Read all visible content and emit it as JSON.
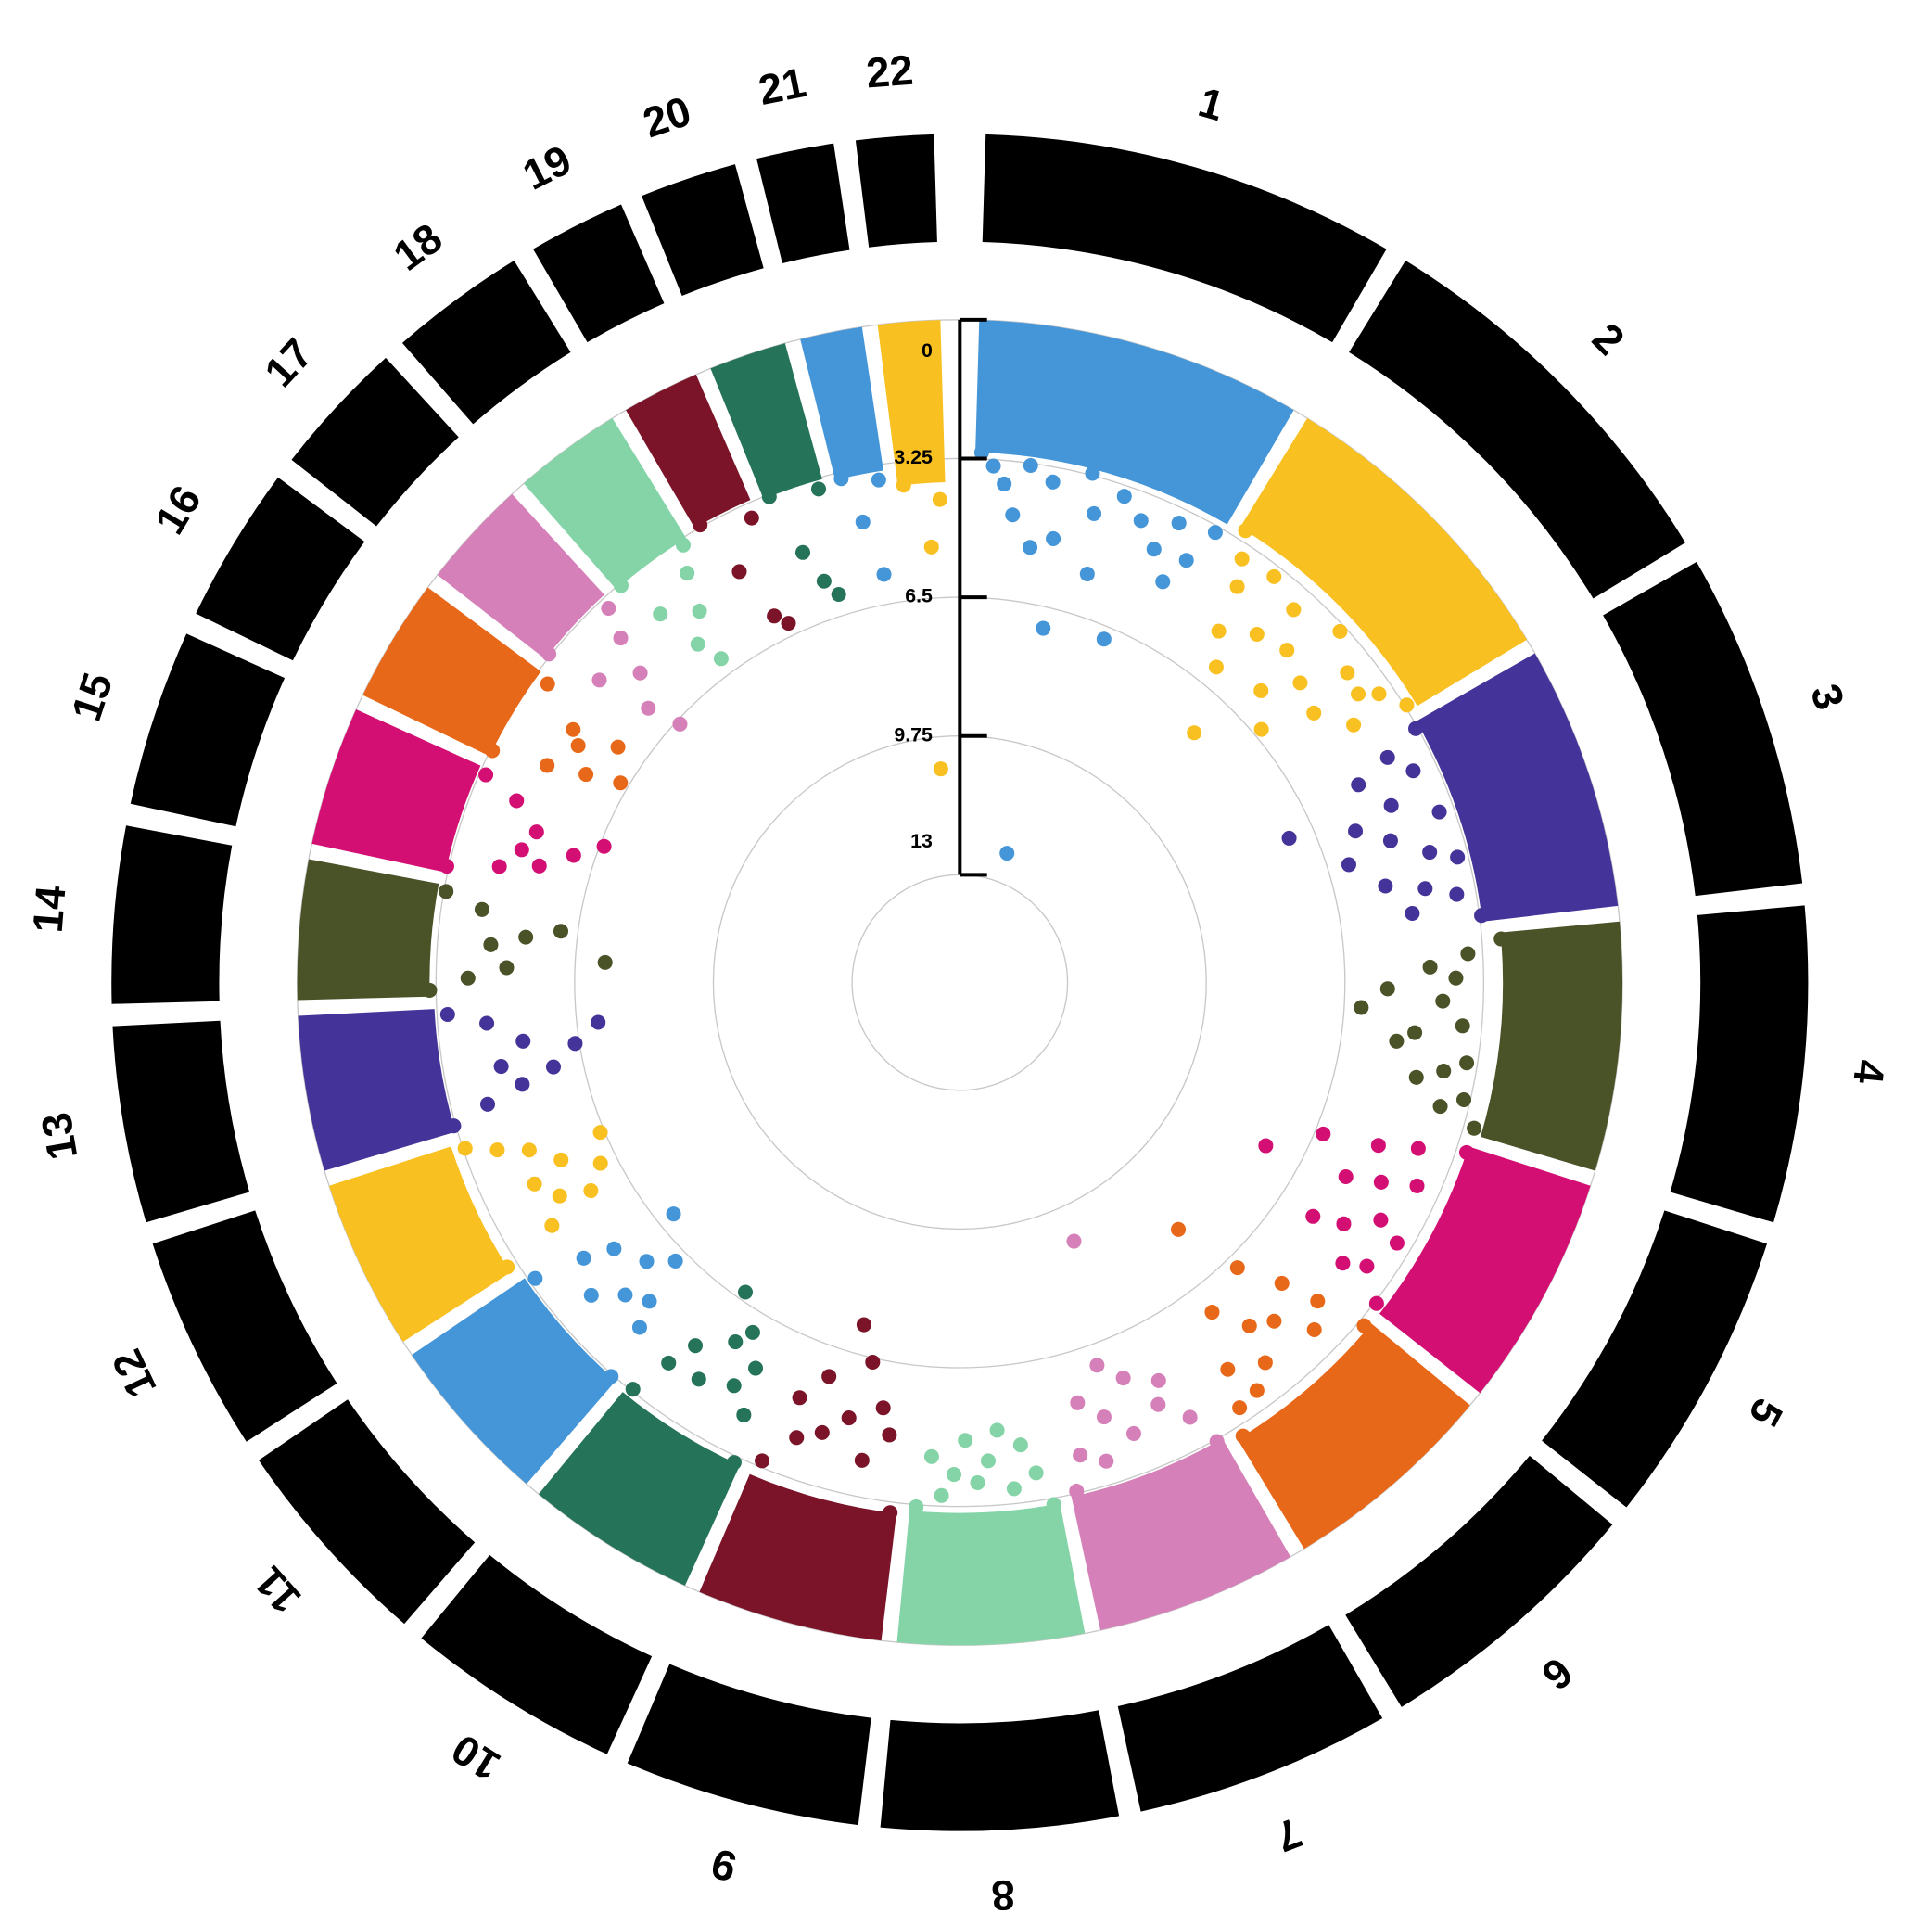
{
  "chart_data": {
    "type": "circular_manhattan",
    "ylim": [
      0,
      13
    ],
    "yticks": [
      0,
      3.25,
      6.5,
      9.75,
      13
    ],
    "grid": true,
    "series": [
      {
        "name": "1",
        "color": "#4496d8",
        "values": [
          3.1,
          3.4,
          3.8,
          4.5,
          3.3,
          5.2,
          3.6,
          4.9,
          7.0,
          3.2,
          4.1,
          5.5,
          3.5,
          12.3,
          3.9,
          6.8,
          4.4,
          3.6,
          5.0,
          4.3,
          3.4
        ]
      },
      {
        "name": "2",
        "color": "#f8c020",
        "values": [
          3.0,
          3.6,
          4.2,
          5.3,
          3.5,
          6.0,
          4.8,
          3.8,
          7.5,
          4.6,
          5.7,
          3.4,
          4.9,
          6.3,
          3.9,
          5.1,
          4.0,
          3.6,
          4.5,
          3.2
        ]
      },
      {
        "name": "3",
        "color": "#443399",
        "values": [
          3.3,
          4.2,
          5.1,
          3.8,
          7.1,
          4.6,
          5.6,
          3.6,
          4.9,
          6.0,
          4.1,
          3.5,
          5.3,
          4.4,
          3.7,
          4.8,
          3.2
        ]
      },
      {
        "name": "4",
        "color": "#4a5228",
        "values": [
          2.8,
          3.6,
          4.5,
          3.9,
          5.5,
          4.2,
          6.1,
          3.7,
          4.8,
          5.2,
          3.5,
          4.0,
          4.6,
          3.4,
          3.9,
          3.0
        ]
      },
      {
        "name": "5",
        "color": "#d40f73",
        "values": [
          3.0,
          4.1,
          5.0,
          6.3,
          3.8,
          4.6,
          5.4,
          7.4,
          4.2,
          3.6,
          4.9,
          5.6,
          3.9,
          4.4,
          3.2
        ]
      },
      {
        "name": "6",
        "color": "#e8681a",
        "values": [
          3.1,
          4.3,
          5.2,
          3.9,
          6.2,
          4.7,
          7.8,
          5.0,
          4.1,
          5.8,
          3.7,
          4.5,
          3.6,
          3.0
        ]
      },
      {
        "name": "7",
        "color": "#d580b8",
        "values": [
          3.2,
          4.0,
          5.1,
          4.6,
          8.9,
          5.5,
          4.2,
          6.0,
          4.8,
          3.8,
          5.3,
          4.1,
          3.3
        ]
      },
      {
        "name": "8",
        "color": "#84d4a8",
        "values": [
          3.1,
          3.9,
          4.6,
          3.6,
          5.0,
          4.3,
          3.8,
          4.8,
          4.0,
          3.5,
          4.4,
          3.2
        ]
      },
      {
        "name": "9",
        "color": "#7b1429",
        "values": [
          3.0,
          4.8,
          5.4,
          4.1,
          6.4,
          5.0,
          7.2,
          4.5,
          5.8,
          4.2,
          5.1,
          3.4
        ]
      },
      {
        "name": "10",
        "color": "#257459",
        "values": [
          3.1,
          4.2,
          5.3,
          4.7,
          6.0,
          5.6,
          4.4,
          6.7,
          5.0,
          4.3,
          3.3
        ]
      },
      {
        "name": "11",
        "color": "#4496d8",
        "values": [
          3.2,
          4.5,
          5.1,
          6.2,
          4.8,
          5.7,
          4.2,
          6.9,
          5.3,
          4.6,
          3.4
        ]
      },
      {
        "name": "12",
        "color": "#f8c020",
        "values": [
          3.0,
          4.4,
          5.6,
          4.9,
          6.1,
          4.5,
          5.3,
          6.4,
          4.7,
          4.0,
          3.3
        ]
      },
      {
        "name": "13",
        "color": "#443399",
        "values": [
          3.2,
          4.1,
          5.0,
          5.8,
          4.6,
          6.4,
          5.2,
          7.0,
          4.4,
          3.5
        ]
      },
      {
        "name": "14",
        "color": "#4a5228",
        "values": [
          3.1,
          4.0,
          4.9,
          7.2,
          4.5,
          5.3,
          6.1,
          4.2,
          3.3
        ]
      },
      {
        "name": "15",
        "color": "#d40f73",
        "values": [
          3.2,
          4.4,
          5.3,
          4.8,
          6.0,
          5.0,
          6.6,
          4.3,
          3.4
        ]
      },
      {
        "name": "16",
        "color": "#e8681a",
        "values": [
          3.3,
          4.6,
          5.5,
          6.3,
          5.0,
          4.7,
          5.8,
          3.6
        ]
      },
      {
        "name": "17",
        "color": "#d580b8",
        "values": [
          3.2,
          4.5,
          5.8,
          6.6,
          5.1,
          4.2,
          3.5
        ]
      },
      {
        "name": "18",
        "color": "#84d4a8",
        "values": [
          3.3,
          4.4,
          5.5,
          6.1,
          4.9,
          4.0,
          3.4
        ]
      },
      {
        "name": "19",
        "color": "#7b1429",
        "values": [
          3.2,
          4.6,
          5.9,
          6.2,
          3.6
        ]
      },
      {
        "name": "20",
        "color": "#257459",
        "values": [
          3.3,
          4.8,
          5.6,
          6.0,
          3.5
        ]
      },
      {
        "name": "21",
        "color": "#4496d8",
        "values": [
          3.4,
          4.5,
          5.8,
          3.6
        ]
      },
      {
        "name": "22",
        "color": "#f8c020",
        "values": [
          3.8,
          10.5,
          5.3,
          4.2
        ]
      }
    ]
  }
}
